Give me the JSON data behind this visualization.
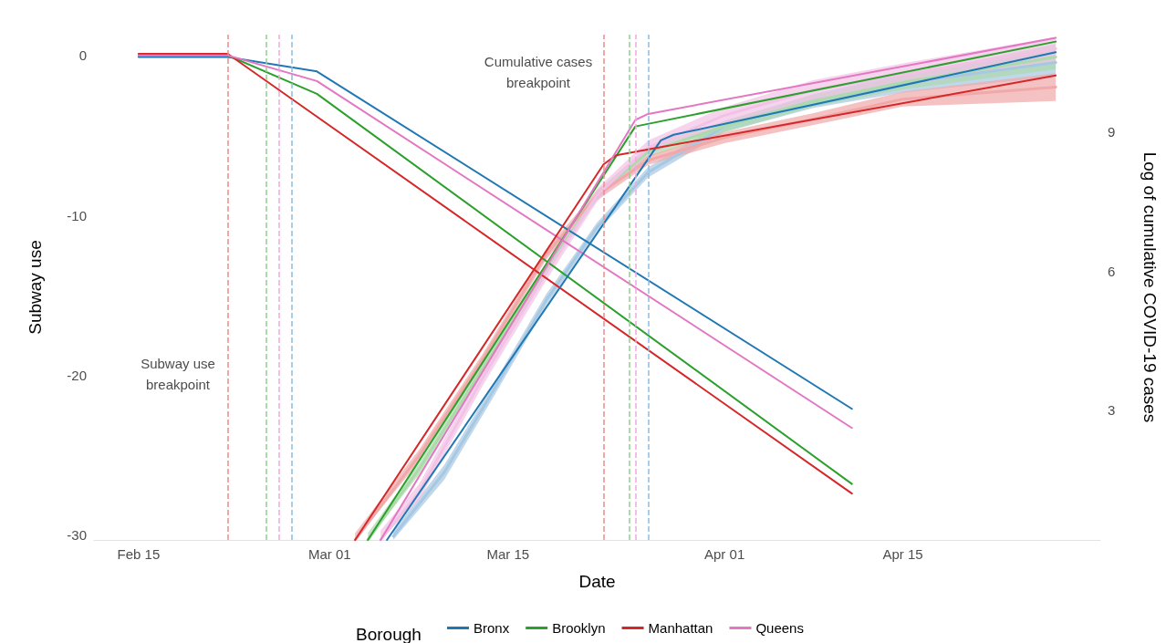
{
  "chart_data": {
    "type": "line",
    "xlabel": "Date",
    "ylabel": "Subway use",
    "y2label": "Log of cumulative COVID-19 cases",
    "legend_title": "Borough",
    "legend": "bottom",
    "grid": false,
    "line_style": "solid",
    "marker": "none",
    "xlim": [
      "--02-11T12:00",
      "--04-30T12:00"
    ],
    "xticks": [
      {
        "value": "--02-15",
        "label": "Feb 15"
      },
      {
        "value": "--03-01",
        "label": "Mar 01"
      },
      {
        "value": "--03-15",
        "label": "Mar 15"
      },
      {
        "value": "--04-01",
        "label": "Apr 01"
      },
      {
        "value": "--04-15",
        "label": "Apr 15"
      }
    ],
    "ylim": [
      -30.3,
      1.3
    ],
    "yticks": [
      -30,
      -20,
      -10,
      0
    ],
    "y2lim": [
      0.2,
      11.1
    ],
    "y2ticks": [
      3,
      6,
      9
    ],
    "series": [
      {
        "name": "Bronx",
        "color": "#1f77b4",
        "x": [
          "--02-15",
          "--02-22",
          "--02-29",
          "--04-11"
        ],
        "values": [
          -0.1,
          -0.1,
          -1.0,
          -22.1
        ]
      },
      {
        "name": "Brooklyn",
        "color": "#2ca02c",
        "x": [
          "--02-15",
          "--02-22",
          "--02-29",
          "--04-11"
        ],
        "values": [
          0,
          0,
          -2.4,
          -26.8
        ]
      },
      {
        "name": "Manhattan",
        "color": "#d62728",
        "x": [
          "--02-15",
          "--02-22",
          "--04-11"
        ],
        "values": [
          0.1,
          0.1,
          -27.4
        ]
      },
      {
        "name": "Queens",
        "color": "#e377c2",
        "x": [
          "--02-15",
          "--02-22",
          "--02-29",
          "--04-11"
        ],
        "values": [
          0,
          0,
          -1.6,
          -23.3
        ]
      },
      {
        "color": "#a6c8e3",
        "axis": "y2",
        "x": [
          "--03-06",
          "--03-10",
          "--03-14",
          "--03-18",
          "--03-22",
          "--03-26",
          "--04-01",
          "--04-08",
          "--04-15",
          "--04-27"
        ],
        "values": [
          0.28,
          1.66,
          3.49,
          5.37,
          6.95,
          8.13,
          9.12,
          9.67,
          10.05,
          10.5
        ],
        "lower": [
          0.2,
          1.5,
          3.35,
          5.25,
          6.85,
          8.02,
          9.0,
          9.52,
          9.85,
          10.2
        ],
        "upper": [
          0.4,
          1.82,
          3.63,
          5.5,
          7.05,
          8.24,
          9.24,
          9.82,
          10.25,
          10.8
        ]
      },
      {
        "color": "#abdaab",
        "axis": "y2",
        "x": [
          "--03-04",
          "--03-08",
          "--03-13",
          "--03-18",
          "--03-22",
          "--03-26",
          "--04-01",
          "--04-08",
          "--04-15",
          "--04-27"
        ],
        "values": [
          0.2,
          1.72,
          3.89,
          6.06,
          7.64,
          8.57,
          9.12,
          9.67,
          10.07,
          10.62
        ],
        "lower": [
          0.2,
          1.6,
          3.78,
          5.95,
          7.54,
          8.46,
          9.0,
          9.55,
          9.92,
          10.35
        ],
        "upper": [
          0.35,
          1.85,
          4.0,
          6.17,
          7.74,
          8.68,
          9.24,
          9.79,
          10.22,
          10.9
        ]
      },
      {
        "color": "#f0a8a8",
        "axis": "y2",
        "x": [
          "--03-03",
          "--03-08",
          "--03-13",
          "--03-18",
          "--03-22",
          "--03-26",
          "--04-01",
          "--04-08",
          "--04-15",
          "--04-27"
        ],
        "values": [
          0.2,
          2.01,
          4.09,
          6.36,
          7.64,
          8.39,
          8.88,
          9.28,
          9.71,
          9.97
        ],
        "lower": [
          0.2,
          1.88,
          3.97,
          6.25,
          7.53,
          8.29,
          8.76,
          9.15,
          9.55,
          9.67
        ],
        "upper": [
          0.35,
          2.14,
          4.21,
          6.47,
          7.75,
          8.49,
          9.0,
          9.41,
          9.87,
          10.27
        ]
      },
      {
        "color": "#f2c2e6",
        "axis": "y2",
        "x": [
          "--03-05",
          "--03-08",
          "--03-13",
          "--03-18",
          "--03-22",
          "--03-26",
          "--04-01",
          "--04-08",
          "--04-15",
          "--04-27"
        ],
        "values": [
          0.2,
          1.22,
          3.69,
          5.96,
          7.64,
          8.66,
          9.36,
          9.91,
          10.24,
          10.8
        ],
        "lower": [
          0.2,
          1.05,
          3.52,
          5.8,
          7.5,
          8.5,
          9.18,
          9.7,
          10.0,
          10.5
        ],
        "upper": [
          0.4,
          1.4,
          3.86,
          6.12,
          7.78,
          8.82,
          9.54,
          10.12,
          10.48,
          11.05
        ]
      },
      {
        "color": "#1f77b4",
        "axis": "y2",
        "x": [
          "--03-05T12:00",
          "--03-27",
          "--03-28",
          "--04-27"
        ],
        "values": [
          0.2,
          8.82,
          8.94,
          10.72
        ]
      },
      {
        "color": "#2ca02c",
        "axis": "y2",
        "x": [
          "--03-04",
          "--03-25",
          "--04-27"
        ],
        "values": [
          0.2,
          9.12,
          10.95
        ]
      },
      {
        "color": "#d62728",
        "axis": "y2",
        "x": [
          "--03-03",
          "--03-22T12:00",
          "--03-23T12:00",
          "--04-27"
        ],
        "values": [
          0.2,
          8.3,
          8.5,
          10.22
        ]
      },
      {
        "color": "#e377c2",
        "axis": "y2",
        "x": [
          "--03-05",
          "--03-25",
          "--03-26",
          "--04-27"
        ],
        "values": [
          0.2,
          9.26,
          9.39,
          11.03
        ]
      }
    ],
    "ref_lines": [
      {
        "axis": "x",
        "value": "--02-22",
        "color": "#f08a8a",
        "line_style": "dashed"
      },
      {
        "axis": "x",
        "value": "--02-25",
        "color": "#8fd18f",
        "line_style": "dashed"
      },
      {
        "axis": "x",
        "value": "--02-26",
        "color": "#f0a8dc",
        "line_style": "dashed"
      },
      {
        "axis": "x",
        "value": "--02-27",
        "color": "#8fbce0",
        "line_style": "dashed"
      },
      {
        "axis": "x",
        "value": "--03-22T12:00",
        "color": "#f08a8a",
        "line_style": "dashed"
      },
      {
        "axis": "x",
        "value": "--03-24T12:00",
        "color": "#8fd18f",
        "line_style": "dashed"
      },
      {
        "axis": "x",
        "value": "--03-25",
        "color": "#f0a8dc",
        "line_style": "dashed"
      },
      {
        "axis": "x",
        "value": "--03-26",
        "color": "#8fbce0",
        "line_style": "dashed"
      }
    ],
    "annotations": [
      "Subway use breakpoint",
      "Cumulative cases breakpoint"
    ]
  }
}
